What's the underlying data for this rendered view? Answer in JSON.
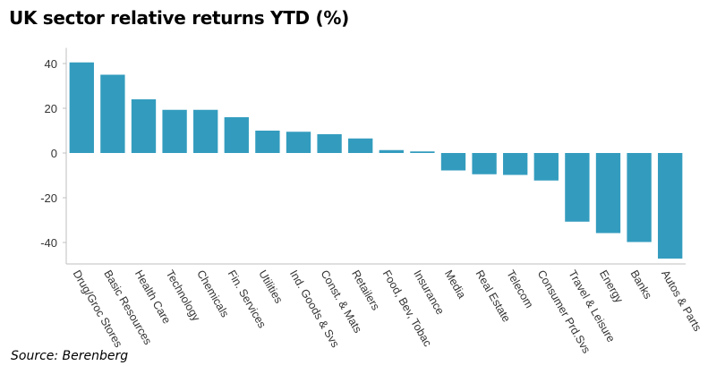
{
  "title": "UK sector relative returns YTD (%)",
  "source": "Source: Berenberg",
  "colors": {
    "bar": "#339cbe",
    "axis": "#bfbfbf"
  },
  "chart_data": {
    "type": "bar",
    "title": "UK sector relative returns YTD (%)",
    "xlabel": "",
    "ylabel": "",
    "ylim": [
      -50,
      45
    ],
    "yticks": [
      40,
      20,
      0,
      -20,
      -40
    ],
    "grid": false,
    "categories": [
      "Drug/Groc Stores",
      "Basic Resources",
      "Health Care",
      "Technology",
      "Chemicals",
      "Fin. Services",
      "Utilities",
      "Ind. Goods & Svs",
      "Const. & Mats",
      "Retailers",
      "Food, Bev, Tobac",
      "Insurance",
      "Media",
      "Real Estate",
      "Telecom",
      "Consumer Prd.Svs",
      "Travel & Leisure",
      "Energy",
      "Banks",
      "Autos & Parts"
    ],
    "values": [
      40.5,
      35,
      24,
      19.3,
      19.3,
      16,
      10,
      9.5,
      8.4,
      6.5,
      1.3,
      0.7,
      -7.8,
      -9.5,
      -9.8,
      -12.3,
      -30.7,
      -35.8,
      -39.8,
      -47.2
    ]
  }
}
